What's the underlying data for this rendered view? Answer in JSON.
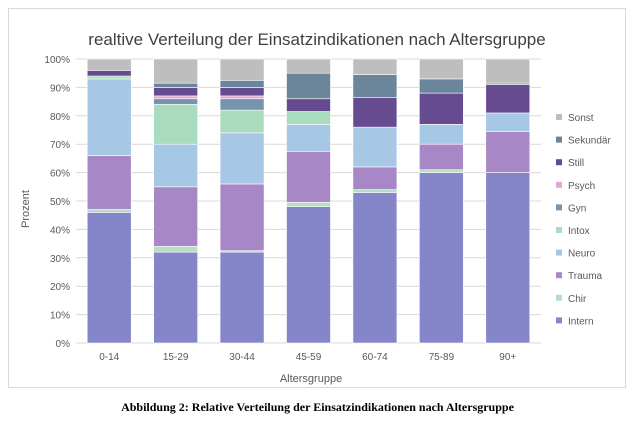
{
  "chart_data": {
    "type": "bar",
    "stacked": true,
    "title": "realtive Verteilung der Einsatzindikationen nach Altersgruppe",
    "xlabel": "Altersgruppe",
    "ylabel": "Prozent",
    "ylim": [
      0,
      100
    ],
    "yticks": [
      "0%",
      "10%",
      "20%",
      "30%",
      "40%",
      "50%",
      "60%",
      "70%",
      "80%",
      "90%",
      "100%"
    ],
    "grid": true,
    "legend_position": "right",
    "categories": [
      "0-14",
      "15-29",
      "30-44",
      "45-59",
      "60-74",
      "75-89",
      "90+"
    ],
    "series": [
      {
        "name": "Intern",
        "color": "#8585c9",
        "values": [
          46,
          32,
          32,
          48,
          53,
          60,
          60
        ]
      },
      {
        "name": "Chir",
        "color": "#b3dfc2",
        "values": [
          1,
          2,
          0.5,
          1.5,
          1,
          1,
          0
        ]
      },
      {
        "name": "Trauma",
        "color": "#a887c6",
        "values": [
          19,
          21,
          23.5,
          18,
          8,
          9,
          14.5
        ]
      },
      {
        "name": "Neuro",
        "color": "#a7c8e5",
        "values": [
          27,
          15,
          18,
          9.5,
          14,
          7,
          6.5
        ]
      },
      {
        "name": "Intox",
        "color": "#a8dcbc",
        "values": [
          1,
          14,
          8,
          4.5,
          0,
          0,
          0
        ]
      },
      {
        "name": "Gyn",
        "color": "#7694ae",
        "values": [
          0,
          2,
          4,
          0,
          0,
          0,
          0
        ]
      },
      {
        "name": "Psych",
        "color": "#e3a7d3",
        "values": [
          0,
          1,
          1,
          0,
          0,
          0,
          0
        ]
      },
      {
        "name": "Still",
        "color": "#674b90",
        "values": [
          2,
          3,
          3,
          4.5,
          10.5,
          11,
          10
        ]
      },
      {
        "name": "Sekundär",
        "color": "#6b869a",
        "values": [
          0,
          1.5,
          2.5,
          9,
          8,
          5,
          0.5
        ]
      },
      {
        "name": "Sonst",
        "color": "#bebebe",
        "values": [
          4,
          8.5,
          7.5,
          5,
          5.5,
          7,
          8.5
        ]
      }
    ]
  },
  "caption": "Abbildung 2: Relative Verteilung der Einsatzindikationen nach Altersgruppe"
}
